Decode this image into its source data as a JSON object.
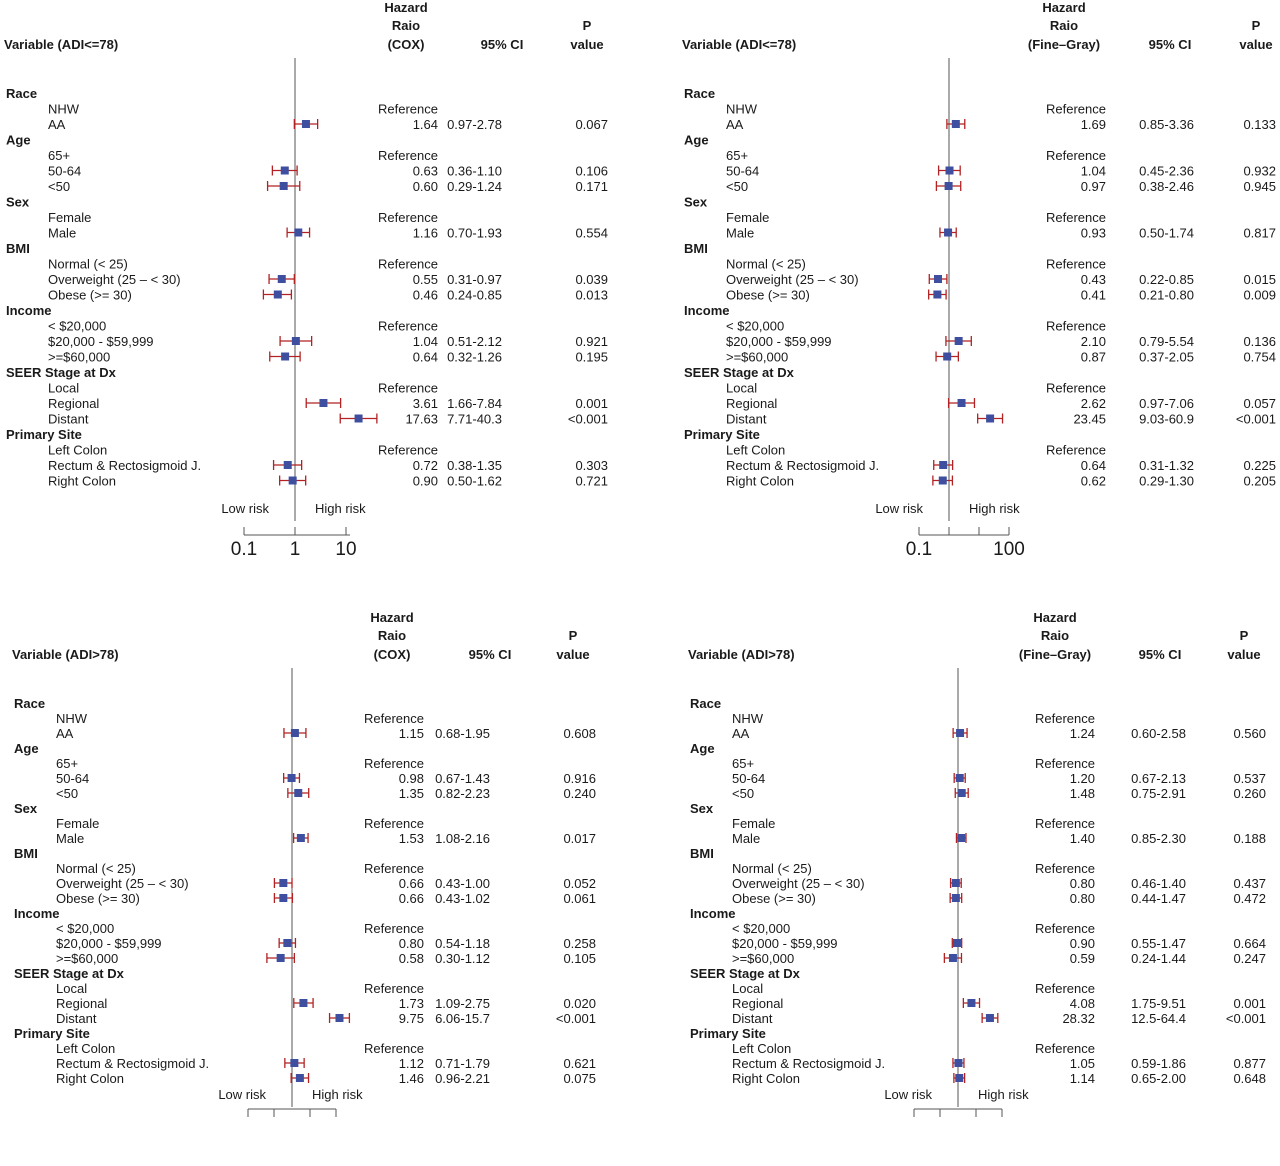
{
  "headers": {
    "hr_cox": [
      "Hazard",
      "Raio",
      "(COX)"
    ],
    "hr_fg": [
      "Hazard",
      "Raio",
      "(Fine–Gray)"
    ],
    "ci": "95% CI",
    "p": [
      "P",
      "value"
    ]
  },
  "axis_text": {
    "low": "Low risk",
    "high": "High risk"
  },
  "colors": {
    "point": "#3f4fa0",
    "whisker": "#b22222",
    "refline": "#555555"
  },
  "chart_data": [
    {
      "type": "forest",
      "variable_header": "Variable (ADI<=78)",
      "model": "COX",
      "x_scale": "log",
      "tick_labels": [
        "0.1",
        "1",
        "10"
      ],
      "xlim": [
        0.1,
        12
      ],
      "show_ticks": true,
      "rows": [
        {
          "group": "Race"
        },
        {
          "label": "NHW",
          "hr": "Reference"
        },
        {
          "label": "AA",
          "hr": "1.64",
          "ci": "0.97-2.78",
          "p": "0.067",
          "est": 1.64,
          "lo": 0.97,
          "hi": 2.78
        },
        {
          "group": "Age"
        },
        {
          "label": "65+",
          "hr": "Reference"
        },
        {
          "label": "50-64",
          "hr": "0.63",
          "ci": "0.36-1.10",
          "p": "0.106",
          "est": 0.63,
          "lo": 0.36,
          "hi": 1.1
        },
        {
          "label": "<50",
          "hr": "0.60",
          "ci": "0.29-1.24",
          "p": "0.171",
          "est": 0.6,
          "lo": 0.29,
          "hi": 1.24
        },
        {
          "group": "Sex"
        },
        {
          "label": "Female",
          "hr": "Reference"
        },
        {
          "label": "Male",
          "hr": "1.16",
          "ci": "0.70-1.93",
          "p": "0.554",
          "est": 1.16,
          "lo": 0.7,
          "hi": 1.93
        },
        {
          "group": "BMI"
        },
        {
          "label": "Normal (< 25)",
          "hr": "Reference"
        },
        {
          "label": "Overweight (25 – < 30)",
          "hr": "0.55",
          "ci": "0.31-0.97",
          "p": "0.039",
          "est": 0.55,
          "lo": 0.31,
          "hi": 0.97
        },
        {
          "label": "Obese (>= 30)",
          "hr": "0.46",
          "ci": "0.24-0.85",
          "p": "0.013",
          "est": 0.46,
          "lo": 0.24,
          "hi": 0.85
        },
        {
          "group": "Income"
        },
        {
          "label": "< $20,000",
          "hr": "Reference"
        },
        {
          "label": "$20,000 - $59,999",
          "hr": "1.04",
          "ci": "0.51-2.12",
          "p": "0.921",
          "est": 1.04,
          "lo": 0.51,
          "hi": 2.12
        },
        {
          "label": ">=$60,000",
          "hr": "0.64",
          "ci": "0.32-1.26",
          "p": "0.195",
          "est": 0.64,
          "lo": 0.32,
          "hi": 1.26
        },
        {
          "group": "SEER Stage at Dx"
        },
        {
          "label": "Local",
          "hr": "Reference"
        },
        {
          "label": "Regional",
          "hr": "3.61",
          "ci": "1.66-7.84",
          "p": "0.001",
          "est": 3.61,
          "lo": 1.66,
          "hi": 7.84
        },
        {
          "label": "Distant",
          "hr": "17.63",
          "ci": "7.71-40.3",
          "p": "<0.001",
          "est": 17.63,
          "lo": 7.71,
          "hi": 40.3
        },
        {
          "group": "Primary Site"
        },
        {
          "label": "Left Colon",
          "hr": "Reference"
        },
        {
          "label": "Rectum & Rectosigmoid J.",
          "hr": "0.72",
          "ci": "0.38-1.35",
          "p": "0.303",
          "est": 0.72,
          "lo": 0.38,
          "hi": 1.35
        },
        {
          "label": "Right Colon",
          "hr": "0.90",
          "ci": "0.50-1.62",
          "p": "0.721",
          "est": 0.9,
          "lo": 0.5,
          "hi": 1.62
        }
      ]
    },
    {
      "type": "forest",
      "variable_header": "Variable (ADI<=78)",
      "model": "Fine–Gray",
      "x_scale": "log",
      "tick_labels": [
        "0.1",
        "100"
      ],
      "xlim": [
        0.1,
        100
      ],
      "show_ticks": true,
      "rows": [
        {
          "group": "Race"
        },
        {
          "label": "NHW",
          "hr": "Reference"
        },
        {
          "label": "AA",
          "hr": "1.69",
          "ci": "0.85-3.36",
          "p": "0.133",
          "est": 1.69,
          "lo": 0.85,
          "hi": 3.36
        },
        {
          "group": "Age"
        },
        {
          "label": "65+",
          "hr": "Reference"
        },
        {
          "label": "50-64",
          "hr": "1.04",
          "ci": "0.45-2.36",
          "p": "0.932",
          "est": 1.04,
          "lo": 0.45,
          "hi": 2.36
        },
        {
          "label": "<50",
          "hr": "0.97",
          "ci": "0.38-2.46",
          "p": "0.945",
          "est": 0.97,
          "lo": 0.38,
          "hi": 2.46
        },
        {
          "group": "Sex"
        },
        {
          "label": "Female",
          "hr": "Reference"
        },
        {
          "label": "Male",
          "hr": "0.93",
          "ci": "0.50-1.74",
          "p": "0.817",
          "est": 0.93,
          "lo": 0.5,
          "hi": 1.74
        },
        {
          "group": "BMI"
        },
        {
          "label": "Normal (< 25)",
          "hr": "Reference"
        },
        {
          "label": "Overweight (25 – < 30)",
          "hr": "0.43",
          "ci": "0.22-0.85",
          "p": "0.015",
          "est": 0.43,
          "lo": 0.22,
          "hi": 0.85
        },
        {
          "label": "Obese (>= 30)",
          "hr": "0.41",
          "ci": "0.21-0.80",
          "p": "0.009",
          "est": 0.41,
          "lo": 0.21,
          "hi": 0.8
        },
        {
          "group": "Income"
        },
        {
          "label": "< $20,000",
          "hr": "Reference"
        },
        {
          "label": "$20,000 - $59,999",
          "hr": "2.10",
          "ci": "0.79-5.54",
          "p": "0.136",
          "est": 2.1,
          "lo": 0.79,
          "hi": 5.54
        },
        {
          "label": ">=$60,000",
          "hr": "0.87",
          "ci": "0.37-2.05",
          "p": "0.754",
          "est": 0.87,
          "lo": 0.37,
          "hi": 2.05
        },
        {
          "group": "SEER Stage at Dx"
        },
        {
          "label": "Local",
          "hr": "Reference"
        },
        {
          "label": "Regional",
          "hr": "2.62",
          "ci": "0.97-7.06",
          "p": "0.057",
          "est": 2.62,
          "lo": 0.97,
          "hi": 7.06
        },
        {
          "label": "Distant",
          "hr": "23.45",
          "ci": "9.03-60.9",
          "p": "<0.001",
          "est": 23.45,
          "lo": 9.03,
          "hi": 60.9
        },
        {
          "group": "Primary Site"
        },
        {
          "label": "Left Colon",
          "hr": "Reference"
        },
        {
          "label": "Rectum & Rectosigmoid J.",
          "hr": "0.64",
          "ci": "0.31-1.32",
          "p": "0.225",
          "est": 0.64,
          "lo": 0.31,
          "hi": 1.32
        },
        {
          "label": "Right Colon",
          "hr": "0.62",
          "ci": "0.29-1.30",
          "p": "0.205",
          "est": 0.62,
          "lo": 0.29,
          "hi": 1.3
        }
      ]
    },
    {
      "type": "forest",
      "variable_header": "Variable (ADI>78)",
      "model": "COX",
      "x_scale": "log",
      "tick_labels": [],
      "xlim": [
        0.1,
        20
      ],
      "show_ticks": false,
      "rows": [
        {
          "group": "Race"
        },
        {
          "label": "NHW",
          "hr": "Reference"
        },
        {
          "label": "AA",
          "hr": "1.15",
          "ci": "0.68-1.95",
          "p": "0.608",
          "est": 1.15,
          "lo": 0.68,
          "hi": 1.95
        },
        {
          "group": "Age"
        },
        {
          "label": "65+",
          "hr": "Reference"
        },
        {
          "label": "50-64",
          "hr": "0.98",
          "ci": "0.67-1.43",
          "p": "0.916",
          "est": 0.98,
          "lo": 0.67,
          "hi": 1.43
        },
        {
          "label": "<50",
          "hr": "1.35",
          "ci": "0.82-2.23",
          "p": "0.240",
          "est": 1.35,
          "lo": 0.82,
          "hi": 2.23
        },
        {
          "group": "Sex"
        },
        {
          "label": "Female",
          "hr": "Reference"
        },
        {
          "label": "Male",
          "hr": "1.53",
          "ci": "1.08-2.16",
          "p": "0.017",
          "est": 1.53,
          "lo": 1.08,
          "hi": 2.16
        },
        {
          "group": "BMI"
        },
        {
          "label": "Normal (< 25)",
          "hr": "Reference"
        },
        {
          "label": "Overweight (25 – < 30)",
          "hr": "0.66",
          "ci": "0.43-1.00",
          "p": "0.052",
          "est": 0.66,
          "lo": 0.43,
          "hi": 1.0
        },
        {
          "label": "Obese (>= 30)",
          "hr": "0.66",
          "ci": "0.43-1.02",
          "p": "0.061",
          "est": 0.66,
          "lo": 0.43,
          "hi": 1.02
        },
        {
          "group": "Income"
        },
        {
          "label": "< $20,000",
          "hr": "Reference"
        },
        {
          "label": "$20,000 - $59,999",
          "hr": "0.80",
          "ci": "0.54-1.18",
          "p": "0.258",
          "est": 0.8,
          "lo": 0.54,
          "hi": 1.18
        },
        {
          "label": ">=$60,000",
          "hr": "0.58",
          "ci": "0.30-1.12",
          "p": "0.105",
          "est": 0.58,
          "lo": 0.3,
          "hi": 1.12
        },
        {
          "group": "SEER Stage at Dx"
        },
        {
          "label": "Local",
          "hr": "Reference"
        },
        {
          "label": "Regional",
          "hr": "1.73",
          "ci": "1.09-2.75",
          "p": "0.020",
          "est": 1.73,
          "lo": 1.09,
          "hi": 2.75
        },
        {
          "label": "Distant",
          "hr": "9.75",
          "ci": "6.06-15.7",
          "p": "<0.001",
          "est": 9.75,
          "lo": 6.06,
          "hi": 15.7
        },
        {
          "group": "Primary Site"
        },
        {
          "label": "Left Colon",
          "hr": "Reference"
        },
        {
          "label": "Rectum & Rectosigmoid J.",
          "hr": "1.12",
          "ci": "0.71-1.79",
          "p": "0.621",
          "est": 1.12,
          "lo": 0.71,
          "hi": 1.79
        },
        {
          "label": "Right Colon",
          "hr": "1.46",
          "ci": "0.96-2.21",
          "p": "0.075",
          "est": 1.46,
          "lo": 0.96,
          "hi": 2.21
        }
      ]
    },
    {
      "type": "forest",
      "variable_header": "Variable (ADI>78)",
      "model": "Fine–Gray",
      "x_scale": "log",
      "tick_labels": [],
      "xlim": [
        0.1,
        200
      ],
      "show_ticks": false,
      "rows": [
        {
          "group": "Race"
        },
        {
          "label": "NHW",
          "hr": "Reference"
        },
        {
          "label": "AA",
          "hr": "1.24",
          "ci": "0.60-2.58",
          "p": "0.560",
          "est": 1.24,
          "lo": 0.6,
          "hi": 2.58
        },
        {
          "group": "Age"
        },
        {
          "label": "65+",
          "hr": "Reference"
        },
        {
          "label": "50-64",
          "hr": "1.20",
          "ci": "0.67-2.13",
          "p": "0.537",
          "est": 1.2,
          "lo": 0.67,
          "hi": 2.13
        },
        {
          "label": "<50",
          "hr": "1.48",
          "ci": "0.75-2.91",
          "p": "0.260",
          "est": 1.48,
          "lo": 0.75,
          "hi": 2.91
        },
        {
          "group": "Sex"
        },
        {
          "label": "Female",
          "hr": "Reference"
        },
        {
          "label": "Male",
          "hr": "1.40",
          "ci": "0.85-2.30",
          "p": "0.188",
          "est": 1.4,
          "lo": 0.85,
          "hi": 2.3
        },
        {
          "group": "BMI"
        },
        {
          "label": "Normal (< 25)",
          "hr": "Reference"
        },
        {
          "label": "Overweight (25 – < 30)",
          "hr": "0.80",
          "ci": "0.46-1.40",
          "p": "0.437",
          "est": 0.8,
          "lo": 0.46,
          "hi": 1.4
        },
        {
          "label": "Obese (>= 30)",
          "hr": "0.80",
          "ci": "0.44-1.47",
          "p": "0.472",
          "est": 0.8,
          "lo": 0.44,
          "hi": 1.47
        },
        {
          "group": "Income"
        },
        {
          "label": "< $20,000",
          "hr": "Reference"
        },
        {
          "label": "$20,000 - $59,999",
          "hr": "0.90",
          "ci": "0.55-1.47",
          "p": "0.664",
          "est": 0.9,
          "lo": 0.55,
          "hi": 1.47
        },
        {
          "label": ">=$60,000",
          "hr": "0.59",
          "ci": "0.24-1.44",
          "p": "0.247",
          "est": 0.59,
          "lo": 0.24,
          "hi": 1.44
        },
        {
          "group": "SEER Stage at Dx"
        },
        {
          "label": "Local",
          "hr": "Reference"
        },
        {
          "label": "Regional",
          "hr": "4.08",
          "ci": "1.75-9.51",
          "p": "0.001",
          "est": 4.08,
          "lo": 1.75,
          "hi": 9.51
        },
        {
          "label": "Distant",
          "hr": "28.32",
          "ci": "12.5-64.4",
          "p": "<0.001",
          "est": 28.32,
          "lo": 12.5,
          "hi": 64.4
        },
        {
          "group": "Primary Site"
        },
        {
          "label": "Left Colon",
          "hr": "Reference"
        },
        {
          "label": "Rectum & Rectosigmoid J.",
          "hr": "1.05",
          "ci": "0.59-1.86",
          "p": "0.877",
          "est": 1.05,
          "lo": 0.59,
          "hi": 1.86
        },
        {
          "label": "Right Colon",
          "hr": "1.14",
          "ci": "0.65-2.00",
          "p": "0.648",
          "est": 1.14,
          "lo": 0.65,
          "hi": 2.0
        }
      ]
    }
  ]
}
